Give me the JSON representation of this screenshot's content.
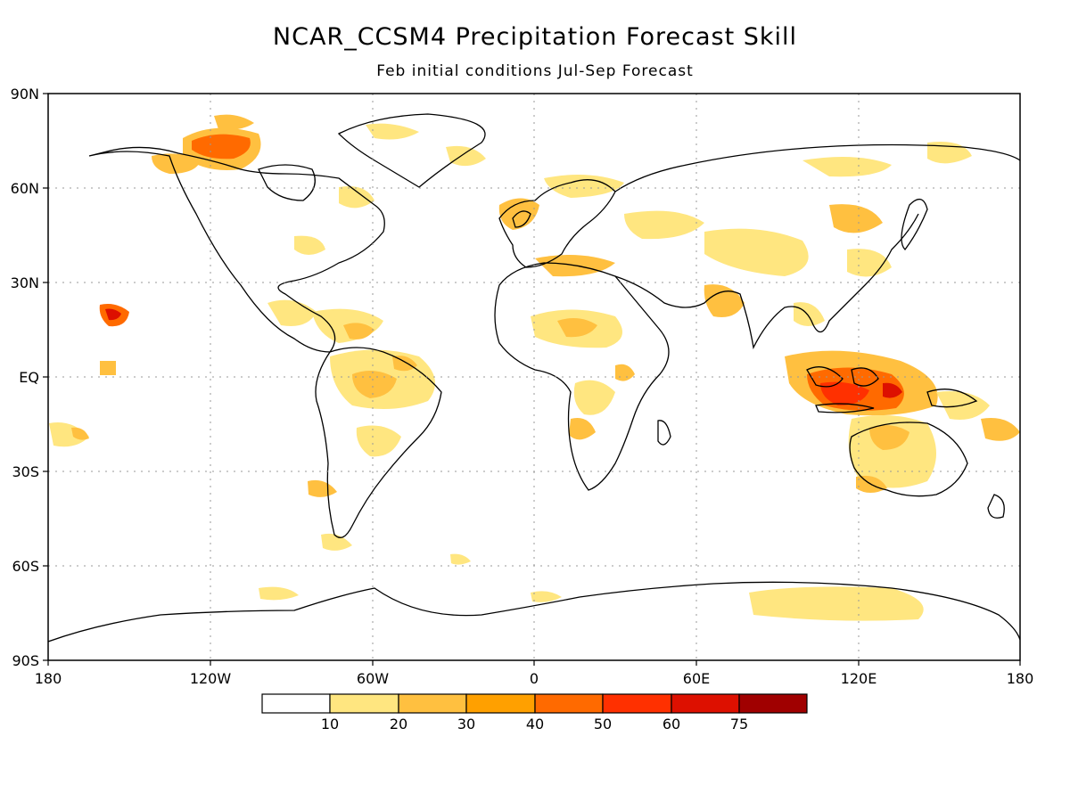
{
  "title": "NCAR_CCSM4 Precipitation Forecast Skill",
  "subtitle": "Feb initial conditions   Jul-Sep Forecast",
  "lat_ticks": [
    "90N",
    "60N",
    "30N",
    "EQ",
    "30S",
    "60S",
    "90S"
  ],
  "lon_ticks": [
    "180",
    "120W",
    "60W",
    "0",
    "60E",
    "120E",
    "180"
  ],
  "colorbar": {
    "labels": [
      "10",
      "20",
      "30",
      "40",
      "50",
      "60",
      "75"
    ],
    "colors": [
      "#ffffff",
      "#ffe680",
      "#ffc040",
      "#ffa000",
      "#ff6a00",
      "#ff3000",
      "#dd1000",
      "#a00000"
    ]
  },
  "colors": {
    "frame": "#000000",
    "grid": "#999999",
    "coast": "#000000"
  }
}
